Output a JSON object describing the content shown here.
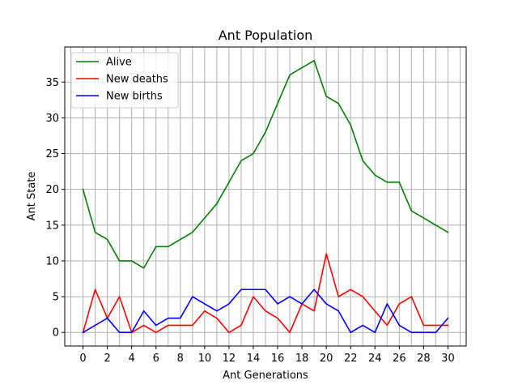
{
  "chart_data": {
    "type": "line",
    "title": "Ant Population",
    "xlabel": "Ant Generations",
    "ylabel": "Ant State",
    "xlim": [
      -1.5,
      31.5
    ],
    "ylim": [
      -1.9,
      39.9
    ],
    "xticks": [
      0,
      2,
      4,
      6,
      8,
      10,
      12,
      14,
      16,
      18,
      20,
      22,
      24,
      26,
      28,
      30
    ],
    "yticks": [
      0,
      5,
      10,
      15,
      20,
      25,
      30,
      35
    ],
    "grid": true,
    "grid_x_every": 1,
    "legend_position": "top-left",
    "x": [
      0,
      1,
      2,
      3,
      4,
      5,
      6,
      7,
      8,
      9,
      10,
      11,
      12,
      13,
      14,
      15,
      16,
      17,
      18,
      19,
      20,
      21,
      22,
      23,
      24,
      25,
      26,
      27,
      28,
      29,
      30
    ],
    "series": [
      {
        "name": "Alive",
        "color": "#008000",
        "values": [
          20,
          14,
          13,
          10,
          10,
          9,
          12,
          12,
          13,
          14,
          16,
          18,
          21,
          24,
          25,
          28,
          32,
          36,
          37,
          38,
          33,
          32,
          29,
          24,
          22,
          21,
          21,
          17,
          16,
          15,
          14
        ]
      },
      {
        "name": "New deaths",
        "color": "#ff0000",
        "values": [
          0,
          6,
          2,
          5,
          0,
          1,
          0,
          1,
          1,
          1,
          3,
          2,
          0,
          1,
          5,
          3,
          2,
          0,
          4,
          3,
          11,
          5,
          6,
          5,
          3,
          1,
          4,
          5,
          1,
          1,
          1
        ]
      },
      {
        "name": "New births",
        "color": "#0000ff",
        "values": [
          0,
          1,
          2,
          0,
          0,
          3,
          1,
          2,
          2,
          5,
          4,
          3,
          4,
          6,
          6,
          6,
          4,
          5,
          4,
          6,
          4,
          3,
          0,
          1,
          0,
          4,
          1,
          0,
          0,
          0,
          2
        ]
      }
    ]
  }
}
